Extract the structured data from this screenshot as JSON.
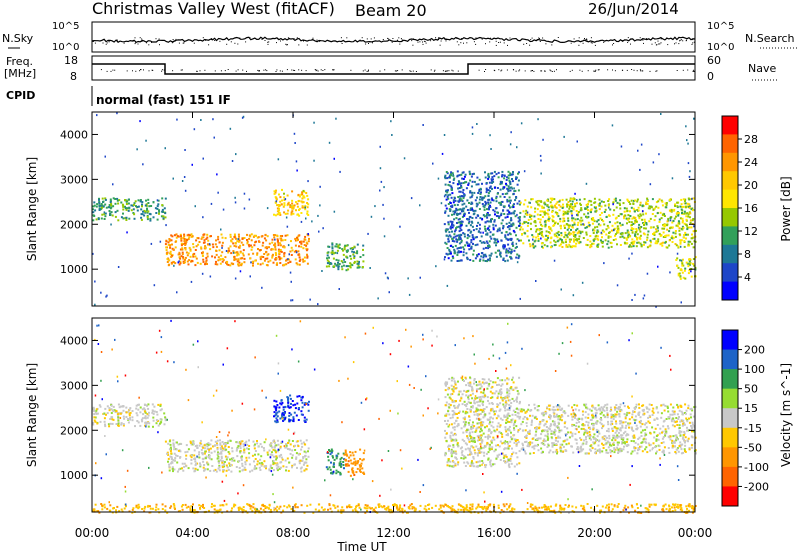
{
  "header": {
    "station": "Christmas Valley West (fitACF)",
    "beam": "Beam 20",
    "date": "26/Jun/2014"
  },
  "top_panels": {
    "nsky_label": "N.Sky",
    "nsearch_label": "N.Search",
    "noise_ticks": [
      "10^5",
      "10^0"
    ],
    "freq_label_1": "Freq.",
    "freq_label_2": "[MHz]",
    "freq_ticks": [
      "18",
      "8"
    ],
    "nave_label": "Nave",
    "nave_ticks": [
      "60",
      "0"
    ],
    "cpid_label": "CPID",
    "cpid_text": "normal (fast) 151 IF"
  },
  "chart_data": [
    {
      "type": "heatmap",
      "name": "power",
      "ylabel": "Slant Range [km]",
      "yticks": [
        1000,
        2000,
        3000,
        4000
      ],
      "ylim": [
        180,
        4500
      ],
      "xlim": [
        0,
        24
      ],
      "colorbar_label": "Power [dB]",
      "colorbar_ticks": [
        "28",
        "24",
        "20",
        "16",
        "12",
        "8",
        "4"
      ],
      "colorbar_colors": [
        "#ff0000",
        "#ff6400",
        "#ff9600",
        "#ffc800",
        "#ffe600",
        "#96c800",
        "#32a05a",
        "#1e7896",
        "#1e46c8",
        "#0000ff"
      ],
      "echo_regions": [
        {
          "t0": 0.0,
          "t1": 2.9,
          "r0": 2100,
          "r1": 2600,
          "level": 12
        },
        {
          "t0": 2.9,
          "t1": 8.6,
          "r0": 1100,
          "r1": 1800,
          "level": 24
        },
        {
          "t0": 7.2,
          "t1": 8.6,
          "r0": 2200,
          "r1": 2800,
          "level": 20
        },
        {
          "t0": 9.3,
          "t1": 10.8,
          "r0": 1000,
          "r1": 1600,
          "level": 12
        },
        {
          "t0": 14.0,
          "t1": 17.0,
          "r0": 1200,
          "r1": 3200,
          "level": 8
        },
        {
          "t0": 17.0,
          "t1": 24.0,
          "r0": 1500,
          "r1": 2600,
          "level": 16
        },
        {
          "t0": 23.2,
          "t1": 24.0,
          "r0": 800,
          "r1": 1300,
          "level": 16
        }
      ]
    },
    {
      "type": "heatmap",
      "name": "velocity",
      "ylabel": "Slant Range [km]",
      "xlabel": "Time UT",
      "yticks": [
        1000,
        2000,
        3000,
        4000
      ],
      "ylim": [
        180,
        4500
      ],
      "xlim": [
        0,
        24
      ],
      "xticks": [
        "00:00",
        "04:00",
        "08:00",
        "12:00",
        "16:00",
        "20:00",
        "00:00"
      ],
      "colorbar_label": "Velocity [m s^-1]",
      "colorbar_ticks": [
        "200",
        "100",
        "50",
        "15",
        "-15",
        "-50",
        "-100",
        "-200"
      ],
      "colorbar_colors": [
        "#0000ff",
        "#1e64c8",
        "#32a050",
        "#96dc32",
        "#c8c8c8",
        "#ffc800",
        "#ff9600",
        "#ff6400",
        "#ff0000"
      ],
      "echo_regions": [
        {
          "t0": 0.0,
          "t1": 2.9,
          "r0": 2100,
          "r1": 2600,
          "level": 0
        },
        {
          "t0": 2.9,
          "t1": 8.6,
          "r0": 1100,
          "r1": 1800,
          "level": 0
        },
        {
          "t0": 7.2,
          "t1": 8.6,
          "r0": 2200,
          "r1": 2800,
          "level": 150
        },
        {
          "t0": 9.3,
          "t1": 10.0,
          "r0": 1000,
          "r1": 1600,
          "level": 60
        },
        {
          "t0": 10.0,
          "t1": 10.8,
          "r0": 1000,
          "r1": 1600,
          "level": -80
        },
        {
          "t0": 14.0,
          "t1": 17.0,
          "r0": 1200,
          "r1": 3200,
          "level": 0
        },
        {
          "t0": 17.0,
          "t1": 24.0,
          "r0": 1500,
          "r1": 2600,
          "level": 0
        },
        {
          "t0": 0.0,
          "t1": 24.0,
          "r0": 180,
          "r1": 380,
          "level": -40
        }
      ]
    }
  ]
}
